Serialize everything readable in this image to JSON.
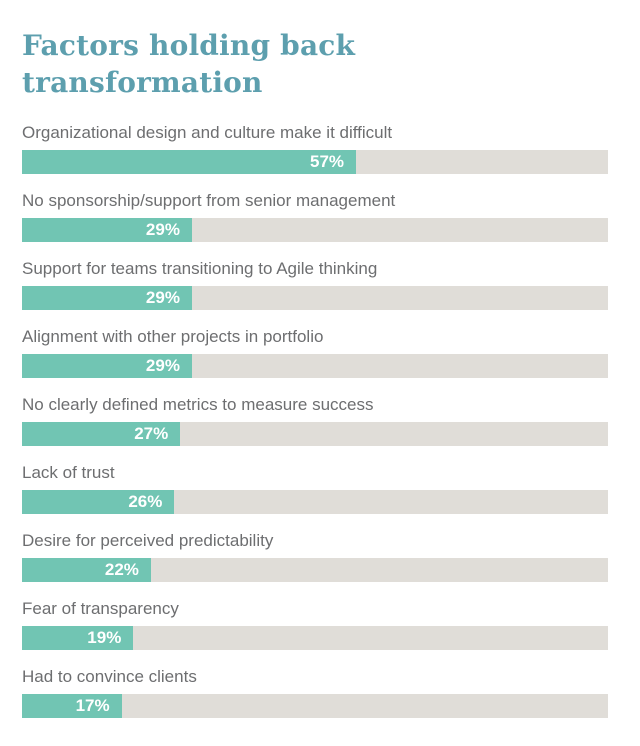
{
  "header": {
    "title_line1": "Factors holding back",
    "title_line2": "transformation"
  },
  "chart_data": {
    "type": "bar",
    "orientation": "horizontal",
    "title": "Factors holding back transformation",
    "categories": [
      "Organizational design and culture make it difficult",
      "No sponsorship/support from senior management",
      "Support for teams transitioning to Agile thinking",
      "Alignment with other projects in portfolio",
      "No clearly defined metrics to measure success",
      "Lack of trust",
      "Desire for perceived predictability",
      "Fear of transparency",
      "Had to convince clients"
    ],
    "values": [
      57,
      29,
      29,
      29,
      27,
      26,
      22,
      19,
      17
    ],
    "value_suffix": "%",
    "xlim": [
      0,
      100
    ],
    "grid": false,
    "legend": "none",
    "colors": {
      "bar_fill": "#71C5B3",
      "bar_track": "#E0DDD8",
      "title": "#5D9FAE",
      "label": "#6D6E70",
      "value_text": "#FFFFFF",
      "background": "#FFFFFF"
    }
  }
}
